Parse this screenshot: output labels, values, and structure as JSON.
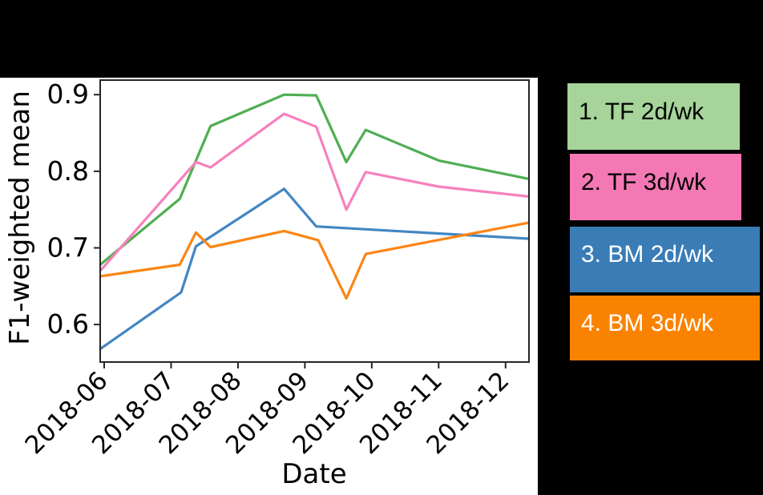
{
  "colors": {
    "page_bg": "#000000",
    "figure_bg": "#ffffff",
    "axis_color": "#262626",
    "tick_label_color": "#000000"
  },
  "chart_data": {
    "type": "line",
    "title": "",
    "xlabel": "Date",
    "ylabel": "F1-weighted mean",
    "x_tick_labels": [
      "2018-06",
      "2018-07",
      "2018-08",
      "2018-09",
      "2018-10",
      "2018-11",
      "2018-12"
    ],
    "x_tick_values": [
      6,
      7,
      8,
      9,
      10,
      11,
      12
    ],
    "y_tick_labels": [
      "0.6",
      "0.7",
      "0.8",
      "0.9"
    ],
    "y_tick_values": [
      0.6,
      0.7,
      0.8,
      0.9
    ],
    "xlim": [
      5.94,
      12.35
    ],
    "ylim": [
      0.551,
      0.919
    ],
    "grid": false,
    "legend_position": "outside-right",
    "x_unit": "month of 2018 (fractional = day within month)",
    "series": [
      {
        "name": "1. TF 2d/wk",
        "color": "#4eae51",
        "points": [
          [
            5.94,
            0.678
          ],
          [
            7.13,
            0.764
          ],
          [
            7.59,
            0.859
          ],
          [
            8.69,
            0.9
          ],
          [
            9.17,
            0.899
          ],
          [
            9.62,
            0.812
          ],
          [
            9.91,
            0.854
          ],
          [
            11.0,
            0.814
          ],
          [
            12.35,
            0.79
          ]
        ]
      },
      {
        "name": "2. TF 3d/wk",
        "color": "#f780bd",
        "points": [
          [
            5.94,
            0.67
          ],
          [
            7.37,
            0.812
          ],
          [
            7.59,
            0.805
          ],
          [
            8.69,
            0.875
          ],
          [
            9.17,
            0.858
          ],
          [
            9.62,
            0.75
          ],
          [
            9.91,
            0.799
          ],
          [
            11.0,
            0.78
          ],
          [
            12.35,
            0.767
          ]
        ]
      },
      {
        "name": "3. BM 2d/wk",
        "color": "#4286c2",
        "points": [
          [
            5.94,
            0.568
          ],
          [
            7.15,
            0.642
          ],
          [
            7.37,
            0.702
          ],
          [
            8.69,
            0.777
          ],
          [
            9.17,
            0.728
          ],
          [
            12.35,
            0.712
          ]
        ]
      },
      {
        "name": "4. BM 3d/wk",
        "color": "#fb8514",
        "points": [
          [
            5.94,
            0.663
          ],
          [
            7.13,
            0.678
          ],
          [
            7.37,
            0.72
          ],
          [
            7.59,
            0.701
          ],
          [
            8.69,
            0.722
          ],
          [
            9.2,
            0.71
          ],
          [
            9.62,
            0.634
          ],
          [
            9.91,
            0.692
          ],
          [
            12.35,
            0.733
          ]
        ]
      }
    ]
  },
  "legend": {
    "items": [
      {
        "label": "1. TF 2d/wk",
        "bg": "#a6d49a",
        "text": "#000000"
      },
      {
        "label": "2. TF 3d/wk",
        "bg": "#f478b4",
        "text": "#000000"
      },
      {
        "label": "3. BM 2d/wk",
        "bg": "#3a7cb6",
        "text": "#ffffff"
      },
      {
        "label": "4. BM 3d/wk",
        "bg": "#f98301",
        "text": "#ffffff"
      }
    ]
  }
}
